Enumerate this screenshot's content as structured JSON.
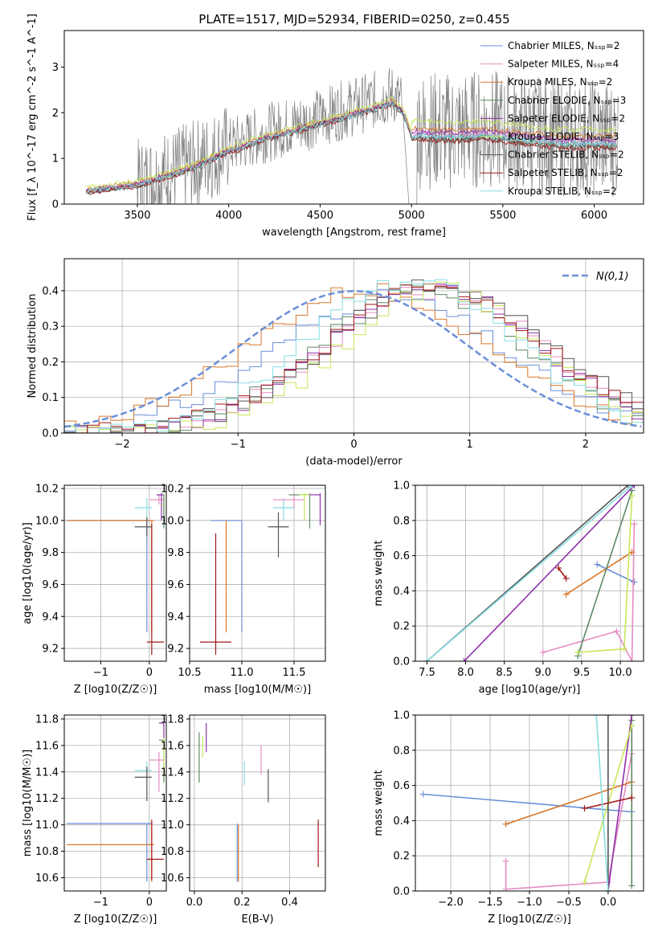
{
  "figure_title": "PLATE=1517, MJD=52934, FIBERID=0250, z=0.455",
  "legend_top": [
    "Chabrier MILES, N_SSP=2",
    "Salpeter MILES, N_SSP=4",
    "Kroupa MILES, N_SSP=2",
    "Chabrier ELODIE, N_SSP=3",
    "Salpeter ELODIE, N_SSP=2",
    "Kroupa ELODIE, N_SSP=3",
    "Chabrier STELIB, N_SSP=2",
    "Salpeter STELIB, N_SSP=2",
    "Kroupa STELIB, N_SSP=2"
  ],
  "legend_hist": "N(0,1)",
  "colors": {
    "chabrier_miles": "#6a8fd8",
    "salpeter_miles": "#e58cc1",
    "kroupa_miles": "#d9772c",
    "chabrier_elodie": "#5e8a64",
    "salpeter_elodie": "#8e2fa8",
    "kroupa_elodie": "#c6e75a",
    "chabrier_stelib": "#555555",
    "salpeter_stelib": "#a01818",
    "kroupa_stelib": "#86dde0",
    "data": "#808080"
  },
  "chart_data": [
    {
      "type": "line",
      "title": "PLATE=1517, MJD=52934, FIBERID=0250, z=0.455",
      "xlabel": "wavelength [Angstrom, rest frame]",
      "ylabel": "Flux [f_λ 10^-17 erg cm^-2 s^-1 A^-1]",
      "xlim": [
        3100,
        6270
      ],
      "ylim": [
        0,
        3.8
      ],
      "xticks": [
        "3500",
        "4000",
        "4500",
        "5000",
        "5500",
        "6000"
      ],
      "yticks": [
        "0",
        "1",
        "2",
        "3"
      ],
      "model_continuum": {
        "x": [
          3220,
          3500,
          3800,
          4000,
          4200,
          4500,
          4700,
          4900,
          4950,
          5000,
          5200,
          5400,
          5600,
          5800,
          6000,
          6130
        ],
        "y": [
          0.3,
          0.45,
          0.85,
          1.25,
          1.55,
          1.9,
          2.15,
          2.4,
          2.2,
          1.65,
          1.6,
          1.65,
          1.55,
          1.45,
          1.45,
          1.45
        ]
      },
      "series": [
        {
          "name": "Chabrier MILES, N_SSP=2",
          "offset": 0.0
        },
        {
          "name": "Salpeter MILES, N_SSP=4",
          "offset": 0.05
        },
        {
          "name": "Kroupa MILES, N_SSP=2",
          "offset": 0.15
        },
        {
          "name": "Chabrier ELODIE, N_SSP=3",
          "offset": -0.05
        },
        {
          "name": "Salpeter ELODIE, N_SSP=2",
          "offset": 0.08
        },
        {
          "name": "Kroupa ELODIE, N_SSP=3",
          "offset": 0.3
        },
        {
          "name": "Chabrier STELIB, N_SSP=2",
          "offset": -0.08
        },
        {
          "name": "Salpeter STELIB, N_SSP=2",
          "offset": -0.1
        },
        {
          "name": "Kroupa STELIB, N_SSP=2",
          "offset": -0.02
        }
      ]
    },
    {
      "type": "histogram",
      "xlabel": "(data-model)/error",
      "ylabel": "Normed distribution",
      "xlim": [
        -2.5,
        2.5
      ],
      "ylim": [
        0,
        0.49
      ],
      "xticks": [
        "−2",
        "−1",
        "0",
        "1",
        "2"
      ],
      "yticks": [
        "0.0",
        "0.1",
        "0.2",
        "0.3",
        "0.4"
      ],
      "bin_width": 0.1,
      "gaussian": {
        "mu": 0,
        "sigma": 1
      },
      "series": [
        {
          "name": "Chabrier MILES",
          "center": 0.3,
          "sigma": 1.0,
          "peak": 0.38
        },
        {
          "name": "Salpeter MILES",
          "center": 0.7,
          "sigma": 0.95,
          "peak": 0.4
        },
        {
          "name": "Kroupa MILES",
          "center": 0.15,
          "sigma": 1.05,
          "peak": 0.4
        },
        {
          "name": "Chabrier ELODIE",
          "center": 0.6,
          "sigma": 0.9,
          "peak": 0.4
        },
        {
          "name": "Salpeter ELODIE",
          "center": 0.7,
          "sigma": 0.9,
          "peak": 0.41
        },
        {
          "name": "Kroupa ELODIE",
          "center": 0.75,
          "sigma": 0.85,
          "peak": 0.4
        },
        {
          "name": "Chabrier STELIB",
          "center": 0.75,
          "sigma": 0.95,
          "peak": 0.42
        },
        {
          "name": "Salpeter STELIB",
          "center": 0.7,
          "sigma": 0.95,
          "peak": 0.41
        },
        {
          "name": "Kroupa STELIB",
          "center": 0.5,
          "sigma": 0.9,
          "peak": 0.43
        }
      ]
    },
    {
      "type": "scatter",
      "xlabel": "Z [log10(Z/Z☉)]",
      "ylabel": "age [log10(age/yr)]",
      "xlim": [
        -1.75,
        0.35
      ],
      "ylim": [
        9.12,
        10.22
      ],
      "xticks": [
        "−1",
        "0"
      ],
      "yticks": [
        "9.2",
        "9.4",
        "9.6",
        "9.8",
        "10.0",
        "10.2"
      ],
      "points": [
        {
          "s": 0,
          "x": -0.05,
          "y": 10.0,
          "xl": -1.7,
          "xh": 0.05,
          "yl": 9.3,
          "yh": 10.0
        },
        {
          "s": 2,
          "x": 0.05,
          "y": 10.0,
          "xl": -1.7,
          "xh": 0.1,
          "yl": 9.3,
          "yh": 10.0
        },
        {
          "s": 8,
          "x": -0.05,
          "y": 10.08,
          "xl": -0.3,
          "xh": 0.05,
          "yl": 10.0,
          "yh": 10.14
        },
        {
          "s": 6,
          "x": -0.05,
          "y": 9.96,
          "xl": -0.3,
          "xh": 0.05,
          "yl": 9.9,
          "yh": 10.02
        },
        {
          "s": 7,
          "x": 0.05,
          "y": 9.24,
          "xl": -0.05,
          "xh": 0.3,
          "yl": 9.16,
          "yh": 9.98
        },
        {
          "s": 1,
          "x": 0.2,
          "y": 10.13,
          "xl": 0.0,
          "xh": 0.3,
          "yl": 10.1,
          "yh": 10.16
        },
        {
          "s": 4,
          "x": 0.25,
          "y": 10.16,
          "xl": 0.15,
          "xh": 0.3,
          "yl": 10.0,
          "yh": 10.17
        },
        {
          "s": 5,
          "x": 0.3,
          "y": 10.1,
          "xl": 0.25,
          "xh": 0.3,
          "yl": 10.0,
          "yh": 10.17
        },
        {
          "s": 3,
          "x": 0.3,
          "y": 10.1,
          "xl": 0.3,
          "xh": 0.3,
          "yl": 9.95,
          "yh": 10.16
        }
      ]
    },
    {
      "type": "scatter",
      "xlabel": "mass [log10(M/M☉)]",
      "ylabel": "",
      "xlim": [
        10.5,
        11.8
      ],
      "ylim": [
        9.12,
        10.22
      ],
      "xticks": [
        "10.5",
        "11.0",
        "11.5"
      ],
      "yticks": [
        "9.2",
        "9.4",
        "9.6",
        "9.8",
        "10.0",
        "10.2"
      ],
      "points": [
        {
          "s": 0,
          "x": 11.0,
          "y": 10.0,
          "xl": 10.7,
          "xh": 11.0,
          "yl": 9.3,
          "yh": 10.0
        },
        {
          "s": 2,
          "x": 10.85,
          "y": 10.0,
          "xl": 10.85,
          "xh": 10.85,
          "yl": 9.3,
          "yh": 10.0
        },
        {
          "s": 7,
          "x": 10.75,
          "y": 9.24,
          "xl": 10.6,
          "xh": 10.9,
          "yl": 9.16,
          "yh": 9.92
        },
        {
          "s": 6,
          "x": 11.35,
          "y": 9.96,
          "xl": 11.25,
          "xh": 11.45,
          "yl": 9.77,
          "yh": 10.05
        },
        {
          "s": 8,
          "x": 11.4,
          "y": 10.08,
          "xl": 11.3,
          "xh": 11.5,
          "yl": 10.0,
          "yh": 10.14
        },
        {
          "s": 1,
          "x": 11.5,
          "y": 10.13,
          "xl": 11.3,
          "xh": 11.6,
          "yl": 10.08,
          "yh": 10.17
        },
        {
          "s": 3,
          "x": 11.65,
          "y": 10.16,
          "xl": 11.45,
          "xh": 11.65,
          "yl": 9.95,
          "yh": 10.17
        },
        {
          "s": 4,
          "x": 11.75,
          "y": 10.16,
          "xl": 11.6,
          "xh": 11.75,
          "yl": 9.97,
          "yh": 10.17
        },
        {
          "s": 5,
          "x": 11.6,
          "y": 10.16,
          "xl": 11.55,
          "xh": 11.65,
          "yl": 10.0,
          "yh": 10.17
        }
      ]
    },
    {
      "type": "line",
      "xlabel": "age [log10(age/yr)]",
      "ylabel": "mass weight",
      "xlim": [
        7.35,
        10.3
      ],
      "ylim": [
        0,
        1
      ],
      "xticks": [
        "7.5",
        "8.0",
        "8.5",
        "9.0",
        "9.5",
        "10.0"
      ],
      "yticks": [
        "0.0",
        "0.2",
        "0.4",
        "0.6",
        "0.8",
        "1.0"
      ],
      "series_paths": [
        {
          "s": 0,
          "x": [
            9.7,
            10.18
          ],
          "y": [
            0.55,
            0.45
          ]
        },
        {
          "s": 1,
          "x": [
            9.0,
            9.95,
            10.15,
            10.18
          ],
          "y": [
            0.05,
            0.17,
            0.0,
            0.78
          ]
        },
        {
          "s": 2,
          "x": [
            9.3,
            10.15
          ],
          "y": [
            0.38,
            0.62
          ]
        },
        {
          "s": 3,
          "x": [
            9.45,
            10.15
          ],
          "y": [
            0.03,
            0.97
          ]
        },
        {
          "s": 4,
          "x": [
            7.98,
            10.18
          ],
          "y": [
            0.0,
            1.0
          ]
        },
        {
          "s": 5,
          "x": [
            9.45,
            10.05,
            10.15
          ],
          "y": [
            0.05,
            0.07,
            0.94
          ]
        },
        {
          "s": 6,
          "x": [
            7.5,
            10.1
          ],
          "y": [
            0.0,
            1.0
          ]
        },
        {
          "s": 7,
          "x": [
            9.2,
            9.3
          ],
          "y": [
            0.53,
            0.47
          ]
        },
        {
          "s": 8,
          "x": [
            7.5,
            10.15
          ],
          "y": [
            0.0,
            1.0
          ]
        }
      ]
    },
    {
      "type": "scatter",
      "xlabel": "Z [log10(Z/Z☉)]",
      "ylabel": "mass [log10(M/M☉)]",
      "xlim": [
        -1.75,
        0.35
      ],
      "ylim": [
        10.5,
        11.83
      ],
      "xticks": [
        "−1",
        "0"
      ],
      "yticks": [
        "10.6",
        "10.8",
        "11.0",
        "11.2",
        "11.4",
        "11.6",
        "11.8"
      ],
      "points": [
        {
          "s": 0,
          "x": -0.05,
          "y": 11.01,
          "xl": -1.7,
          "xh": 0.05,
          "yl": 10.57,
          "yh": 11.01
        },
        {
          "s": 2,
          "x": 0.05,
          "y": 10.85,
          "xl": -1.7,
          "xh": 0.1,
          "yl": 10.57,
          "yh": 11.02
        },
        {
          "s": 7,
          "x": 0.05,
          "y": 10.74,
          "xl": -0.05,
          "xh": 0.3,
          "yl": 10.58,
          "yh": 11.04
        },
        {
          "s": 8,
          "x": -0.05,
          "y": 11.41,
          "xl": -0.3,
          "xh": 0.05,
          "yl": 11.35,
          "yh": 11.48
        },
        {
          "s": 6,
          "x": -0.05,
          "y": 11.36,
          "xl": -0.3,
          "xh": 0.05,
          "yl": 11.18,
          "yh": 11.44
        },
        {
          "s": 1,
          "x": 0.2,
          "y": 11.49,
          "xl": 0.0,
          "xh": 0.3,
          "yl": 11.25,
          "yh": 11.55
        },
        {
          "s": 3,
          "x": 0.3,
          "y": 11.64,
          "xl": 0.2,
          "xh": 0.3,
          "yl": 11.32,
          "yh": 11.66
        },
        {
          "s": 4,
          "x": 0.3,
          "y": 11.77,
          "xl": 0.2,
          "xh": 0.3,
          "yl": 11.6,
          "yh": 11.77
        },
        {
          "s": 5,
          "x": 0.3,
          "y": 11.62,
          "xl": 0.25,
          "xh": 0.3,
          "yl": 11.4,
          "yh": 11.66
        }
      ]
    },
    {
      "type": "scatter",
      "xlabel": "E(B-V)",
      "ylabel": "",
      "xlim": [
        -0.02,
        0.55
      ],
      "ylim": [
        10.5,
        11.83
      ],
      "xticks": [
        "0.0",
        "0.2",
        "0.4"
      ],
      "yticks": [
        "10.6",
        "10.8",
        "11.0",
        "11.2",
        "11.4",
        "11.6",
        "11.8"
      ],
      "points": [
        {
          "s": 0,
          "x": 0.18,
          "yl": 10.57,
          "yh": 11.01
        },
        {
          "s": 2,
          "x": 0.185,
          "yl": 10.57,
          "yh": 11.0
        },
        {
          "s": 7,
          "x": 0.52,
          "yl": 10.68,
          "yh": 11.04
        },
        {
          "s": 8,
          "x": 0.21,
          "yl": 11.3,
          "yh": 11.48
        },
        {
          "s": 6,
          "x": 0.31,
          "yl": 11.17,
          "yh": 11.42
        },
        {
          "s": 1,
          "x": 0.28,
          "yl": 11.38,
          "yh": 11.6
        },
        {
          "s": 3,
          "x": 0.02,
          "yl": 11.32,
          "yh": 11.7
        },
        {
          "s": 4,
          "x": 0.05,
          "yl": 11.55,
          "yh": 11.77
        },
        {
          "s": 5,
          "x": 0.035,
          "yl": 11.51,
          "yh": 11.67
        }
      ]
    },
    {
      "type": "line",
      "xlabel": "Z [log10(Z/Z☉)]",
      "ylabel": "mass weight",
      "xlim": [
        -2.45,
        0.45
      ],
      "ylim": [
        0,
        1
      ],
      "xticks": [
        "−2.0",
        "−1.5",
        "−1.0",
        "−0.5",
        "0.0"
      ],
      "yticks": [
        "0.0",
        "0.2",
        "0.4",
        "0.6",
        "0.8",
        "1.0"
      ],
      "series_paths": [
        {
          "s": 0,
          "x": [
            -2.35,
            0.3
          ],
          "y": [
            0.55,
            0.45
          ]
        },
        {
          "s": 1,
          "x": [
            -1.3,
            -1.3,
            0.0,
            0.3,
            0.3
          ],
          "y": [
            0.17,
            0.01,
            0.05,
            0.78,
            1.0
          ]
        },
        {
          "s": 2,
          "x": [
            -1.3,
            0.3
          ],
          "y": [
            0.38,
            0.62
          ]
        },
        {
          "s": 3,
          "x": [
            0.3,
            0.3
          ],
          "y": [
            0.03,
            0.97
          ]
        },
        {
          "s": 4,
          "x": [
            0.0,
            0.3
          ],
          "y": [
            0.0,
            1.0
          ]
        },
        {
          "s": 5,
          "x": [
            -0.3,
            0.3
          ],
          "y": [
            0.05,
            0.94
          ]
        },
        {
          "s": 6,
          "x": [
            0.0,
            0.0
          ],
          "y": [
            0.0,
            1.0
          ]
        },
        {
          "s": 7,
          "x": [
            -0.3,
            0.3
          ],
          "y": [
            0.47,
            0.53
          ]
        },
        {
          "s": 8,
          "x": [
            -0.15,
            0.0
          ],
          "y": [
            1.0,
            0.0
          ]
        }
      ]
    }
  ]
}
